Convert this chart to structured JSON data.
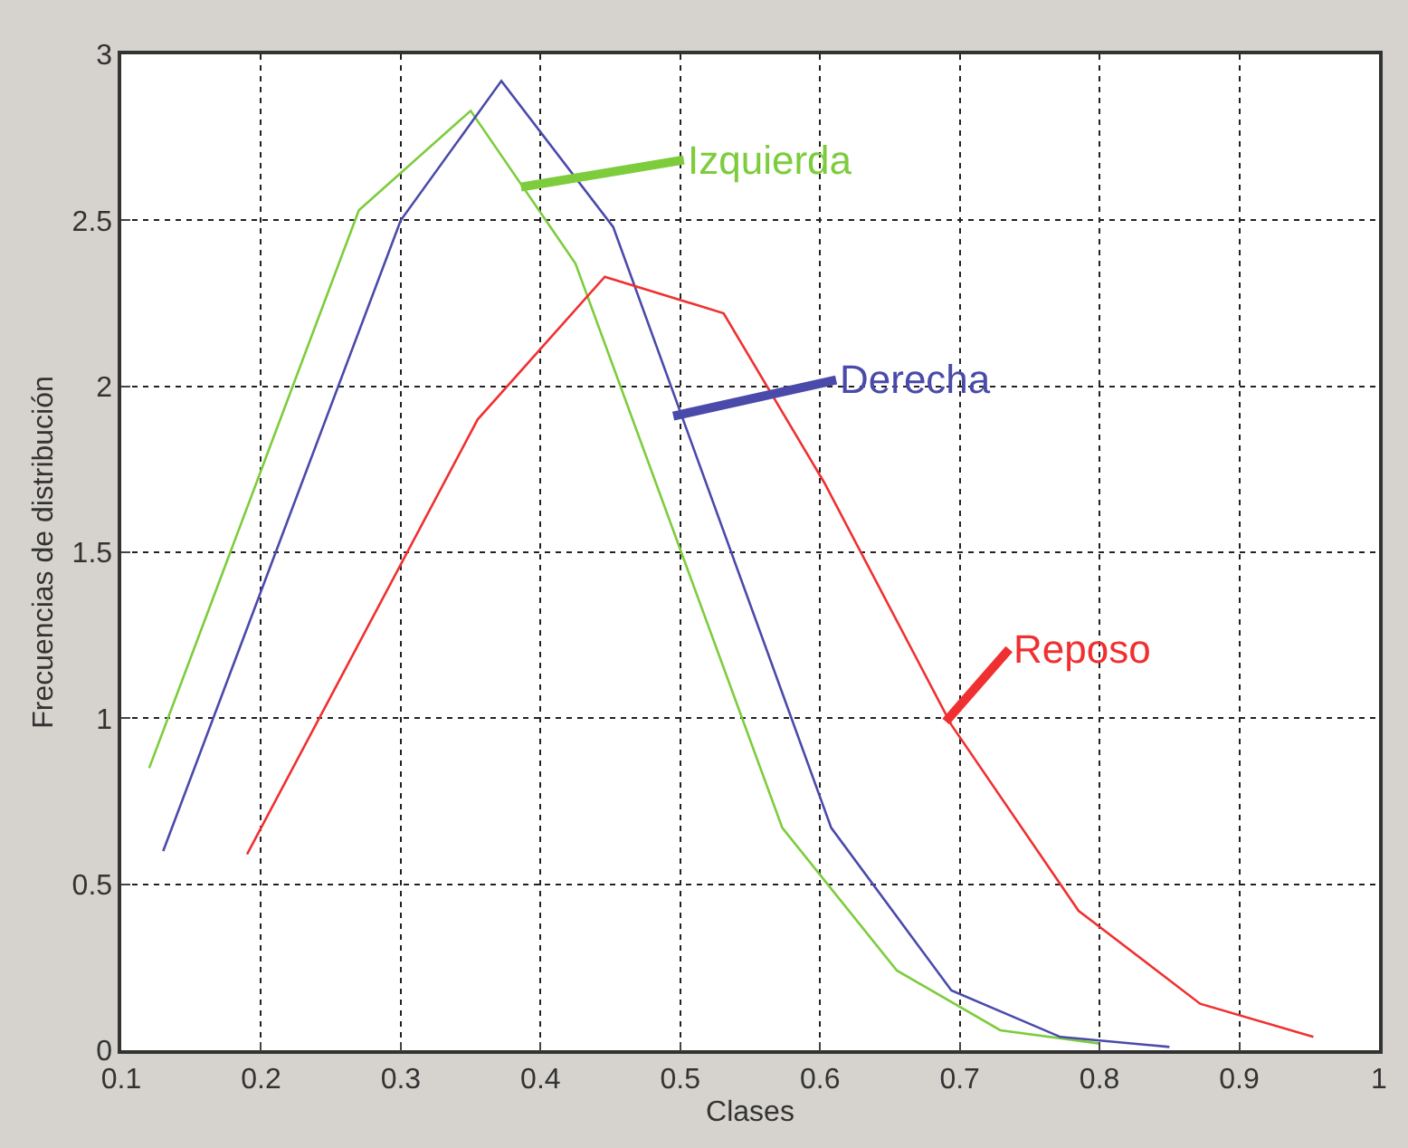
{
  "chart_data": {
    "type": "line",
    "xlabel": "Clases",
    "ylabel": "Frecuencias de distribución",
    "xlim": [
      0.1,
      1
    ],
    "ylim": [
      0,
      3
    ],
    "xticks": [
      0.1,
      0.2,
      0.3,
      0.4,
      0.5,
      0.6,
      0.7,
      0.8,
      0.9,
      1
    ],
    "yticks": [
      0,
      0.5,
      1,
      1.5,
      2,
      2.5,
      3
    ],
    "grid": true,
    "marker": "none",
    "line_style": "solid",
    "series": [
      {
        "color": "#7ccc3c",
        "x": [
          0.12,
          0.27,
          0.35,
          0.425,
          0.573,
          0.655,
          0.729,
          0.8
        ],
        "values": [
          0.85,
          2.53,
          2.83,
          2.37,
          0.67,
          0.24,
          0.06,
          0.02
        ]
      },
      {
        "color": "#4a4aaa",
        "x": [
          0.13,
          0.3,
          0.372,
          0.452,
          0.608,
          0.694,
          0.772,
          0.85
        ],
        "values": [
          0.6,
          2.5,
          2.92,
          2.48,
          0.67,
          0.18,
          0.04,
          0.01
        ]
      },
      {
        "color": "#f03030",
        "x": [
          0.19,
          0.355,
          0.446,
          0.531,
          0.603,
          0.694,
          0.785,
          0.872,
          0.953
        ],
        "values": [
          0.59,
          1.9,
          2.33,
          2.22,
          1.71,
          0.98,
          0.42,
          0.14,
          0.04
        ]
      }
    ],
    "annotations": [
      {
        "text": "Izquierda",
        "x": 0.386,
        "y": 2.6
      },
      {
        "text": "Derecha",
        "x": 0.495,
        "y": 1.91
      },
      {
        "text": "Reposo",
        "x": 0.69,
        "y": 0.99
      }
    ]
  }
}
